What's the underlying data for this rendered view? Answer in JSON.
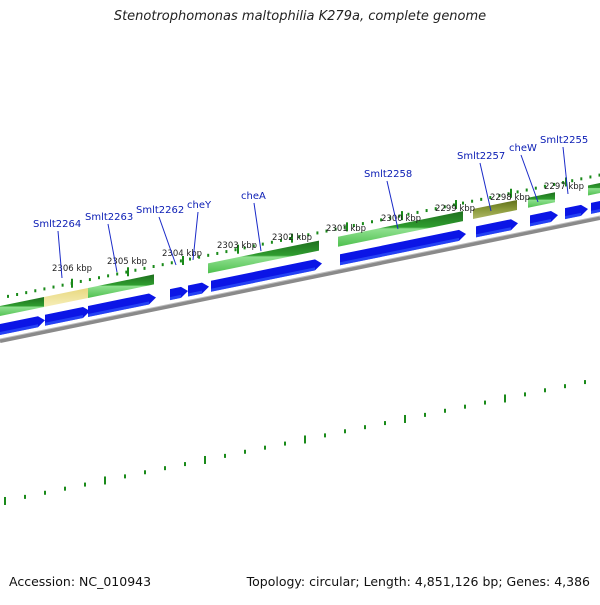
{
  "title": "Stenotrophomonas maltophilia K279a, complete genome",
  "footer": {
    "accession": "Accession: NC_010943",
    "summary": "Topology: circular; Length: 4,851,126 bp; Genes: 4,386"
  },
  "colors": {
    "backbone": "#8a8a8a",
    "tick": "#1a8a1a",
    "cds_blue": "#0b15e6",
    "gene_green": "#2e9a2e",
    "gene_highlight": "#f0e49a",
    "gene_olive": "#7a8a2a",
    "label": "#0a1cb4"
  },
  "ruler_labels": [
    {
      "text": "2306 kbp"
    },
    {
      "text": "2305 kbp"
    },
    {
      "text": "2304 kbp"
    },
    {
      "text": "2303 kbp"
    },
    {
      "text": "2302 kbp"
    },
    {
      "text": "2301 kbp"
    },
    {
      "text": "2300 kbp"
    },
    {
      "text": "2299 kbp"
    },
    {
      "text": "2298 kbp"
    },
    {
      "text": "2297 kbp"
    }
  ],
  "gene_labels": [
    {
      "text": "Smlt2264"
    },
    {
      "text": "Smlt2263"
    },
    {
      "text": "Smlt2262"
    },
    {
      "text": "cheY"
    },
    {
      "text": "cheA"
    },
    {
      "text": "Smlt2258"
    },
    {
      "text": "Smlt2257"
    },
    {
      "text": "cheW"
    },
    {
      "text": "Smlt2255"
    }
  ]
}
